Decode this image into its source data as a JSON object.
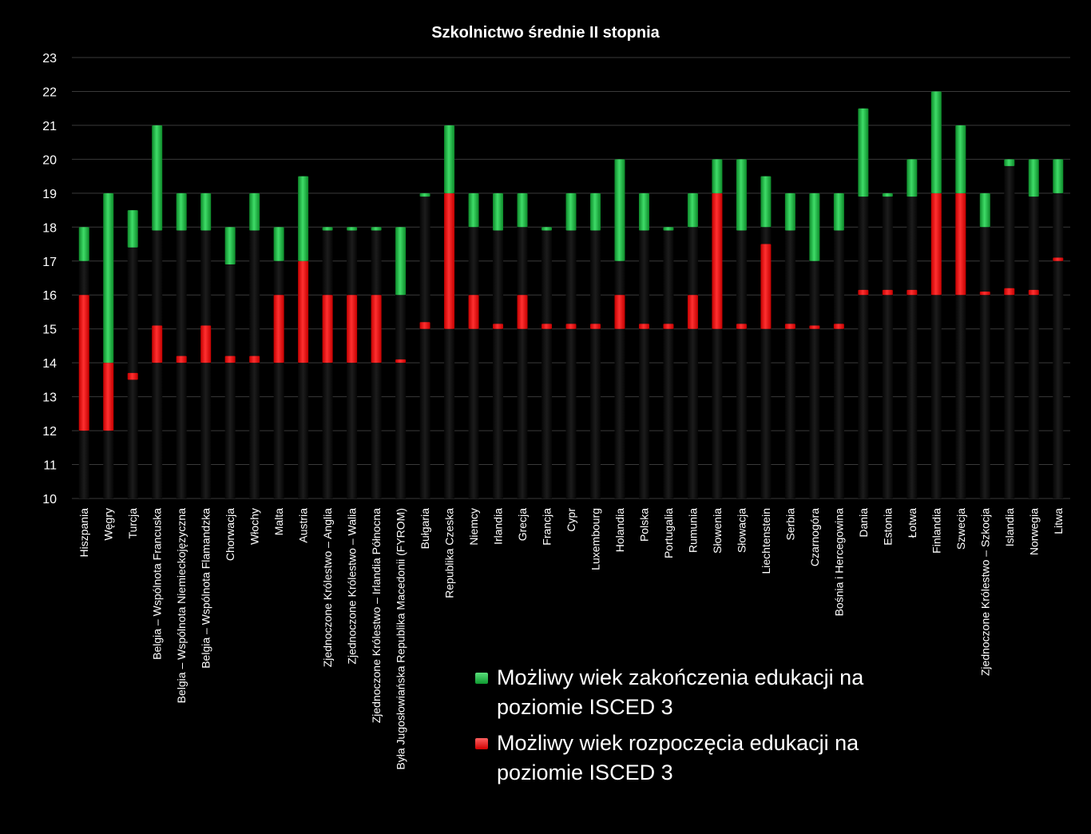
{
  "chart_data": {
    "type": "bar",
    "title": "Szkolnictwo średnie II stopnia",
    "ylim": [
      10,
      23
    ],
    "yticks": [
      10,
      11,
      12,
      13,
      14,
      15,
      16,
      17,
      18,
      19,
      20,
      21,
      22,
      23
    ],
    "categories": [
      "Hiszpania",
      "Węgry",
      "Turcja",
      "Belgia – Wspólnota Francuska",
      "Belgia – Wspólnota Niemieckojęzyczna",
      "Belgia – Wspólnota Flamandzka",
      "Chorwacja",
      "Włochy",
      "Malta",
      "Austria",
      "Zjednoczone Królestwo – Anglia",
      "Zjednoczone Królestwo – Walia",
      "Zjednoczone Królestwo – Irlandia Północna",
      "Była Jugosłowiańska Republika Macedonii (FYROM)",
      "Bułgaria",
      "Republika Czeska",
      "Niemcy",
      "Irlandia",
      "Grecja",
      "Francja",
      "Cypr",
      "Luxembourg",
      "Holandia",
      "Polska",
      "Portugalia",
      "Rumunia",
      "Słowenia",
      "Słowacja",
      "Liechtenstein",
      "Serbia",
      "Czarnogóra",
      "Bośnia i Hercegowina",
      "Dania",
      "Estonia",
      "Łotwa",
      "Finlandia",
      "Szwecja",
      "Zjednoczone Królestwo – Szkocja",
      "Islandia",
      "Norwegia",
      "Litwa"
    ],
    "series": [
      {
        "name": "Możliwy wiek rozpoczęcia edukacji na poziomie ISCED 3",
        "color": "#ff1a1a",
        "ranges": [
          [
            12,
            16
          ],
          [
            12,
            14
          ],
          [
            13.5,
            13.7
          ],
          [
            14,
            15.1
          ],
          [
            14,
            14.2
          ],
          [
            14,
            15.1
          ],
          [
            14,
            14.2
          ],
          [
            14,
            14.2
          ],
          [
            14,
            16
          ],
          [
            14,
            17
          ],
          [
            14,
            16
          ],
          [
            14,
            16
          ],
          [
            14,
            16
          ],
          [
            14,
            14.1
          ],
          [
            15,
            15.2
          ],
          [
            15,
            19
          ],
          [
            15,
            16
          ],
          [
            15,
            15.15
          ],
          [
            15,
            16
          ],
          [
            15,
            15.15
          ],
          [
            15,
            15.15
          ],
          [
            15,
            15.15
          ],
          [
            15,
            16
          ],
          [
            15,
            15.15
          ],
          [
            15,
            15.15
          ],
          [
            15,
            16
          ],
          [
            15,
            19
          ],
          [
            15,
            15.15
          ],
          [
            15,
            17.5
          ],
          [
            15,
            15.15
          ],
          [
            15,
            15.1
          ],
          [
            15,
            15.15
          ],
          [
            16,
            16.15
          ],
          [
            16,
            16.15
          ],
          [
            16,
            16.15
          ],
          [
            16,
            19
          ],
          [
            16,
            19
          ],
          [
            16,
            16.1
          ],
          [
            16,
            16.2
          ],
          [
            16,
            16.15
          ],
          [
            17,
            17.1
          ]
        ]
      },
      {
        "name": "Możliwy wiek zakończenia edukacji na poziomie ISCED 3",
        "color": "#1fc44a",
        "ranges": [
          [
            17,
            18
          ],
          [
            14,
            19
          ],
          [
            17.4,
            18.5
          ],
          [
            17.9,
            21
          ],
          [
            17.9,
            19
          ],
          [
            17.9,
            19
          ],
          [
            16.9,
            18
          ],
          [
            17.9,
            19
          ],
          [
            17,
            18
          ],
          [
            17,
            19.5
          ],
          [
            17.9,
            18
          ],
          [
            17.9,
            18
          ],
          [
            17.9,
            18
          ],
          [
            16,
            18
          ],
          [
            18.9,
            19
          ],
          [
            19,
            21
          ],
          [
            18,
            19
          ],
          [
            17.9,
            19
          ],
          [
            18,
            19
          ],
          [
            17.9,
            18
          ],
          [
            17.9,
            19
          ],
          [
            17.9,
            19
          ],
          [
            17,
            20
          ],
          [
            17.9,
            19
          ],
          [
            17.9,
            18
          ],
          [
            18,
            19
          ],
          [
            19,
            20
          ],
          [
            17.9,
            20
          ],
          [
            18,
            19.5
          ],
          [
            17.9,
            19
          ],
          [
            17,
            19
          ],
          [
            17.9,
            19
          ],
          [
            18.9,
            21.5
          ],
          [
            18.9,
            19
          ],
          [
            18.9,
            20
          ],
          [
            19,
            22
          ],
          [
            19,
            21
          ],
          [
            18,
            19
          ],
          [
            19.8,
            20
          ],
          [
            18.9,
            20
          ],
          [
            19,
            20
          ]
        ]
      }
    ],
    "legend": {
      "placement": "bottom-right",
      "items": [
        {
          "label": "Możliwy wiek zakończenia edukacji na poziomie ISCED 3",
          "color": "#1fc44a"
        },
        {
          "label": "Możliwy wiek rozpoczęcia edukacji na poziomie ISCED 3",
          "color": "#ff1a1a"
        }
      ]
    },
    "grid": true
  }
}
